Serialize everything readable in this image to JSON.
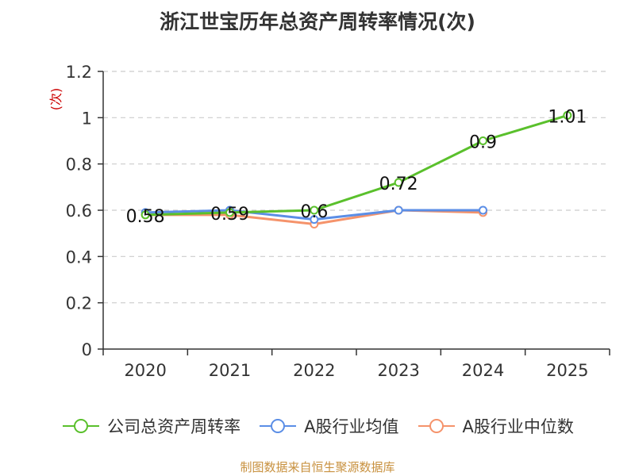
{
  "chart_data": {
    "type": "line",
    "title": "浙江世宝历年总资产周转率情况(次)",
    "ylabel": "(次)",
    "xlabel": "",
    "categories": [
      "2020",
      "2021",
      "2022",
      "2023",
      "2024",
      "2025"
    ],
    "ylim": [
      0,
      1.2
    ],
    "yticks": [
      "0",
      "0.2",
      "0.4",
      "0.6",
      "0.8",
      "1",
      "1.2"
    ],
    "grid": true,
    "legend_position": "bottom",
    "series": [
      {
        "name": "公司总资产周转率",
        "color": "#5ac02c",
        "values": [
          0.58,
          0.59,
          0.6,
          0.72,
          0.9,
          1.01
        ],
        "labels": [
          "0.58",
          "0.59",
          "0.6",
          "0.72",
          "0.9",
          "1.01"
        ]
      },
      {
        "name": "A股行业均值",
        "color": "#5b8ee6",
        "values": [
          0.59,
          0.6,
          0.56,
          0.6,
          0.6,
          null
        ]
      },
      {
        "name": "A股行业中位数",
        "color": "#f5936b",
        "values": [
          0.58,
          0.58,
          0.54,
          0.6,
          0.59,
          null
        ]
      }
    ]
  },
  "source": "制图数据来自恒生聚源数据库",
  "colors": {
    "axis": "#333333",
    "grid": "#cccccc",
    "ylabel": "#cc0000"
  }
}
